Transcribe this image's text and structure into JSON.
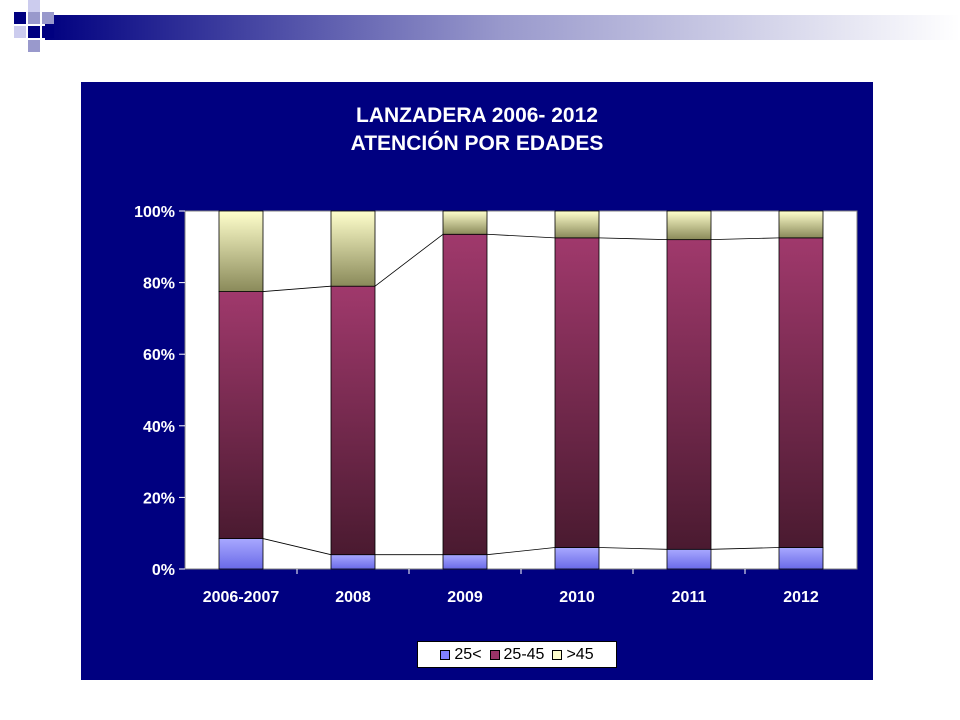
{
  "slide": {
    "decoration_colors": [
      "#000080",
      "#9999cc",
      "#ccccee"
    ]
  },
  "chart_data": {
    "type": "bar",
    "stacked": true,
    "percent": true,
    "title": [
      "LANZADERA 2006- 2012",
      "ATENCIÓN POR EDADES"
    ],
    "xlabel": "",
    "ylabel": "",
    "ylim": [
      0,
      100
    ],
    "y_ticks": [
      "0%",
      "20%",
      "40%",
      "60%",
      "80%",
      "100%"
    ],
    "categories": [
      "2006-2007",
      "2008",
      "2009",
      "2010",
      "2011",
      "2012"
    ],
    "series": [
      {
        "name": "25<",
        "values": [
          8.5,
          4,
          4,
          6,
          5.5,
          6
        ],
        "color": "#8080ff"
      },
      {
        "name": "25-45",
        "values": [
          69,
          75,
          89.5,
          86.5,
          86.5,
          86.5
        ],
        "color": "#993366"
      },
      {
        "name": ">45",
        "values": [
          22.5,
          21,
          6.5,
          7.5,
          8,
          7.5
        ],
        "color": "#ffffcc"
      }
    ],
    "series_lines": true,
    "grid": false,
    "legend_position": "bottom",
    "colors": {
      "background": "#000080",
      "plot_area": "#ffffff",
      "text": "#ffffff"
    }
  }
}
